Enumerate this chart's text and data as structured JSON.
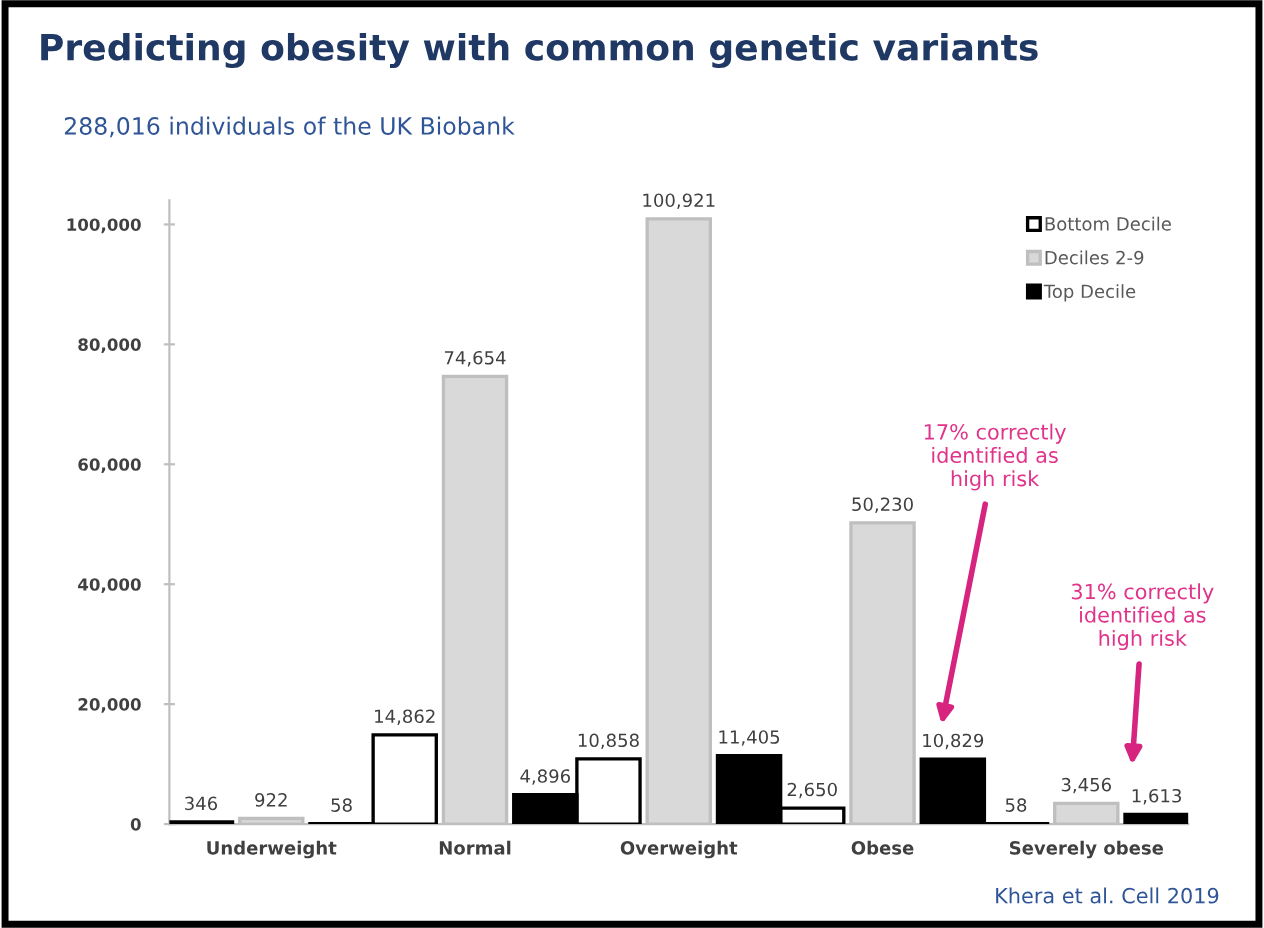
{
  "chart_data": {
    "type": "bar",
    "title": "Predicting obesity with common genetic variants",
    "subtitle": "288,016 individuals of the UK Biobank",
    "categories": [
      "Underweight",
      "Normal",
      "Overweight",
      "Obese",
      "Severely obese"
    ],
    "series": [
      {
        "name": "Bottom Decile",
        "color": "#ffffff",
        "values": [
          346,
          14862,
          10858,
          2650,
          58
        ]
      },
      {
        "name": "Deciles 2-9",
        "color": "#d9d9d9",
        "values": [
          922,
          74654,
          100921,
          50230,
          3456
        ]
      },
      {
        "name": "Top Decile",
        "color": "#000000",
        "values": [
          58,
          4896,
          11405,
          10829,
          1613
        ]
      }
    ],
    "ylim": [
      0,
      104000
    ],
    "yticks": [
      0,
      {
        "value": 20000,
        "label": "20,000"
      },
      {
        "value": 40000,
        "label": "40,000"
      },
      {
        "value": 60000,
        "label": "60,000"
      },
      {
        "value": 80000,
        "label": "80,000"
      },
      {
        "value": 100000,
        "label": "100,000"
      }
    ],
    "value_labels": [
      [
        "346",
        "14,862",
        "10,858",
        "2,650",
        "58"
      ],
      [
        "922",
        "74,654",
        "100,921",
        "50,230",
        "3,456"
      ],
      [
        "58",
        "4,896",
        "11,405",
        "10,829",
        "1,613"
      ]
    ],
    "grid": false,
    "legend": "top right",
    "annotations": [
      "17% correctly\nidentified as\nhigh risk",
      "31% correctly\nidentified as\nhigh risk",
      "Khera et al. Cell 2019"
    ]
  }
}
